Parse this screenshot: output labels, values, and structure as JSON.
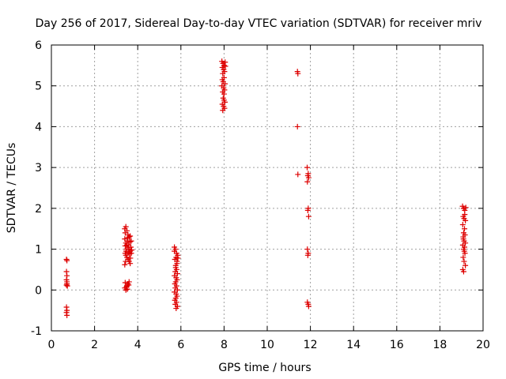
{
  "chart_data": {
    "type": "scatter",
    "title": "Day 256 of 2017, Sidereal Day-to-day VTEC variation (SDTVAR) for receiver mriv",
    "xlabel": "GPS time / hours",
    "ylabel": "SDTVAR / TECUs",
    "xlim": [
      0,
      20
    ],
    "ylim": [
      -1,
      6
    ],
    "xticks": [
      0,
      2,
      4,
      6,
      8,
      10,
      12,
      14,
      16,
      18,
      20
    ],
    "yticks": [
      -1,
      0,
      1,
      2,
      3,
      4,
      5,
      6
    ],
    "xtick_labels": [
      "0",
      "2",
      "4",
      "6",
      "8",
      "10",
      "12",
      "14",
      "16",
      "18",
      "20"
    ],
    "ytick_labels": [
      "-1",
      "0",
      "1",
      "2",
      "3",
      "4",
      "5",
      "6"
    ],
    "grid": true,
    "marker": "+",
    "marker_color": "#dd0000",
    "series": [
      {
        "name": "SDTVAR",
        "points": [
          [
            0.7,
            0.75
          ],
          [
            0.72,
            0.72
          ],
          [
            0.7,
            0.45
          ],
          [
            0.72,
            0.35
          ],
          [
            0.7,
            0.25
          ],
          [
            0.72,
            0.15
          ],
          [
            0.74,
            0.1
          ],
          [
            0.7,
            0.12
          ],
          [
            0.72,
            0.2
          ],
          [
            0.7,
            -0.42
          ],
          [
            0.72,
            -0.5
          ],
          [
            0.7,
            -0.55
          ],
          [
            0.72,
            -0.62
          ],
          [
            3.4,
            1.5
          ],
          [
            3.45,
            1.55
          ],
          [
            3.42,
            1.4
          ],
          [
            3.5,
            1.45
          ],
          [
            3.55,
            1.35
          ],
          [
            3.6,
            1.3
          ],
          [
            3.65,
            1.32
          ],
          [
            3.7,
            1.2
          ],
          [
            3.4,
            1.25
          ],
          [
            3.45,
            1.15
          ],
          [
            3.5,
            1.1
          ],
          [
            3.55,
            1.05
          ],
          [
            3.6,
            1.0
          ],
          [
            3.65,
            0.95
          ],
          [
            3.7,
            0.9
          ],
          [
            3.45,
            0.85
          ],
          [
            3.5,
            0.8
          ],
          [
            3.55,
            0.75
          ],
          [
            3.6,
            0.7
          ],
          [
            3.65,
            0.65
          ],
          [
            3.4,
            0.62
          ],
          [
            3.42,
            0.9
          ],
          [
            3.48,
            1.0
          ],
          [
            3.52,
            1.2
          ],
          [
            3.58,
            1.1
          ],
          [
            3.62,
            0.88
          ],
          [
            3.68,
            1.05
          ],
          [
            3.72,
            0.98
          ],
          [
            3.44,
            0.7
          ],
          [
            3.56,
            0.92
          ],
          [
            3.64,
            1.18
          ],
          [
            3.42,
            1.08
          ],
          [
            3.66,
            0.78
          ],
          [
            3.54,
            1.28
          ],
          [
            3.46,
            0.95
          ],
          [
            3.4,
            0.05
          ],
          [
            3.45,
            0.0
          ],
          [
            3.5,
            0.1
          ],
          [
            3.55,
            0.15
          ],
          [
            3.6,
            0.2
          ],
          [
            3.48,
            0.08
          ],
          [
            3.58,
            0.12
          ],
          [
            3.42,
            0.18
          ],
          [
            3.52,
            0.02
          ],
          [
            5.7,
            1.05
          ],
          [
            5.75,
            1.0
          ],
          [
            5.8,
            0.9
          ],
          [
            5.85,
            0.85
          ],
          [
            5.78,
            0.8
          ],
          [
            5.72,
            0.75
          ],
          [
            5.82,
            0.7
          ],
          [
            5.76,
            0.6
          ],
          [
            5.8,
            0.5
          ],
          [
            5.74,
            0.45
          ],
          [
            5.84,
            0.4
          ],
          [
            5.7,
            0.35
          ],
          [
            5.78,
            0.3
          ],
          [
            5.82,
            0.25
          ],
          [
            5.76,
            0.2
          ],
          [
            5.72,
            0.15
          ],
          [
            5.8,
            0.1
          ],
          [
            5.74,
            0.05
          ],
          [
            5.84,
            0.0
          ],
          [
            5.7,
            -0.05
          ],
          [
            5.78,
            -0.1
          ],
          [
            5.82,
            -0.15
          ],
          [
            5.76,
            -0.2
          ],
          [
            5.72,
            -0.25
          ],
          [
            5.8,
            -0.3
          ],
          [
            5.74,
            -0.35
          ],
          [
            5.84,
            -0.4
          ],
          [
            5.78,
            -0.45
          ],
          [
            5.76,
            0.55
          ],
          [
            5.82,
            0.65
          ],
          [
            5.7,
            0.95
          ],
          [
            5.86,
            0.78
          ],
          [
            7.9,
            5.6
          ],
          [
            7.95,
            5.55
          ],
          [
            8.0,
            5.5
          ],
          [
            8.05,
            5.58
          ],
          [
            7.92,
            5.45
          ],
          [
            7.98,
            5.4
          ],
          [
            8.02,
            5.35
          ],
          [
            7.94,
            5.3
          ],
          [
            8.0,
            5.2
          ],
          [
            7.96,
            5.1
          ],
          [
            8.04,
            5.05
          ],
          [
            7.9,
            5.0
          ],
          [
            7.98,
            4.95
          ],
          [
            8.02,
            4.9
          ],
          [
            7.94,
            4.85
          ],
          [
            8.0,
            4.8
          ],
          [
            7.96,
            4.7
          ],
          [
            8.04,
            4.6
          ],
          [
            7.92,
            4.55
          ],
          [
            7.98,
            4.5
          ],
          [
            8.02,
            4.45
          ],
          [
            7.94,
            4.4
          ],
          [
            8.06,
            5.48
          ],
          [
            7.92,
            5.15
          ],
          [
            8.0,
            4.65
          ],
          [
            11.4,
            5.35
          ],
          [
            11.42,
            5.3
          ],
          [
            11.4,
            4.0
          ],
          [
            11.42,
            2.83
          ],
          [
            11.85,
            3.0
          ],
          [
            11.9,
            2.85
          ],
          [
            11.88,
            2.8
          ],
          [
            11.92,
            2.75
          ],
          [
            11.86,
            2.65
          ],
          [
            11.9,
            2.0
          ],
          [
            11.88,
            1.95
          ],
          [
            11.92,
            1.8
          ],
          [
            11.86,
            1.0
          ],
          [
            11.9,
            0.9
          ],
          [
            11.88,
            0.85
          ],
          [
            11.86,
            -0.3
          ],
          [
            11.9,
            -0.35
          ],
          [
            11.92,
            -0.4
          ],
          [
            19.05,
            2.05
          ],
          [
            19.1,
            2.0
          ],
          [
            19.15,
            1.95
          ],
          [
            19.2,
            2.02
          ],
          [
            19.08,
            1.8
          ],
          [
            19.12,
            1.75
          ],
          [
            19.18,
            1.7
          ],
          [
            19.06,
            1.6
          ],
          [
            19.14,
            1.5
          ],
          [
            19.1,
            1.4
          ],
          [
            19.16,
            1.35
          ],
          [
            19.08,
            1.3
          ],
          [
            19.12,
            1.2
          ],
          [
            19.18,
            1.15
          ],
          [
            19.06,
            1.1
          ],
          [
            19.14,
            1.05
          ],
          [
            19.1,
            1.0
          ],
          [
            19.16,
            0.9
          ],
          [
            19.08,
            0.8
          ],
          [
            19.12,
            0.7
          ],
          [
            19.18,
            0.6
          ],
          [
            19.06,
            0.5
          ],
          [
            19.1,
            0.45
          ],
          [
            19.15,
            1.85
          ],
          [
            19.09,
            1.25
          ],
          [
            19.13,
            0.95
          ]
        ]
      }
    ]
  }
}
